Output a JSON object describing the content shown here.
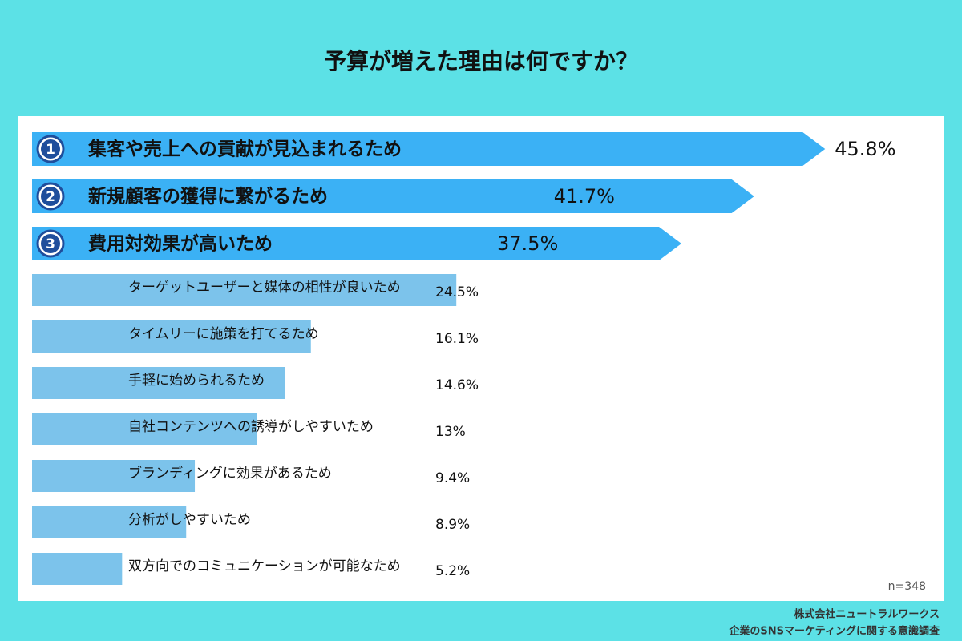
{
  "chart_data": {
    "type": "bar",
    "title": "予算が増えた理由は何ですか？",
    "categories": [
      "集客や売上への貢献が見込まれるため",
      "新規顧客の獲得に繋がるため",
      "費用対効果が高いため",
      "ターゲットユーザーと媒体の相性が良いため",
      "タイムリーに施策を打てるため",
      "手軽に始められるため",
      "自社コンテンツへの誘導がしやすいため",
      "ブランディングに効果があるため",
      "分析がしやすいため",
      "双方向でのコミュニケーションが可能なため"
    ],
    "values": [
      45.8,
      41.7,
      37.5,
      24.5,
      16.1,
      14.6,
      13,
      9.4,
      8.9,
      5.2
    ],
    "value_labels": [
      "45.8%",
      "41.7%",
      "37.5%",
      "24.5%",
      "16.1%",
      "14.6%",
      "13%",
      "9.4%",
      "8.9%",
      "5.2%"
    ],
    "ranks": [
      "1",
      "2",
      "3"
    ],
    "color": "#7cc3eb",
    "highlight_color": "#3bb1f5",
    "note": "n=348",
    "source": [
      "株式会社ニュートラルワークス",
      "企業のSNSマーケティングに関する意識調査"
    ]
  }
}
